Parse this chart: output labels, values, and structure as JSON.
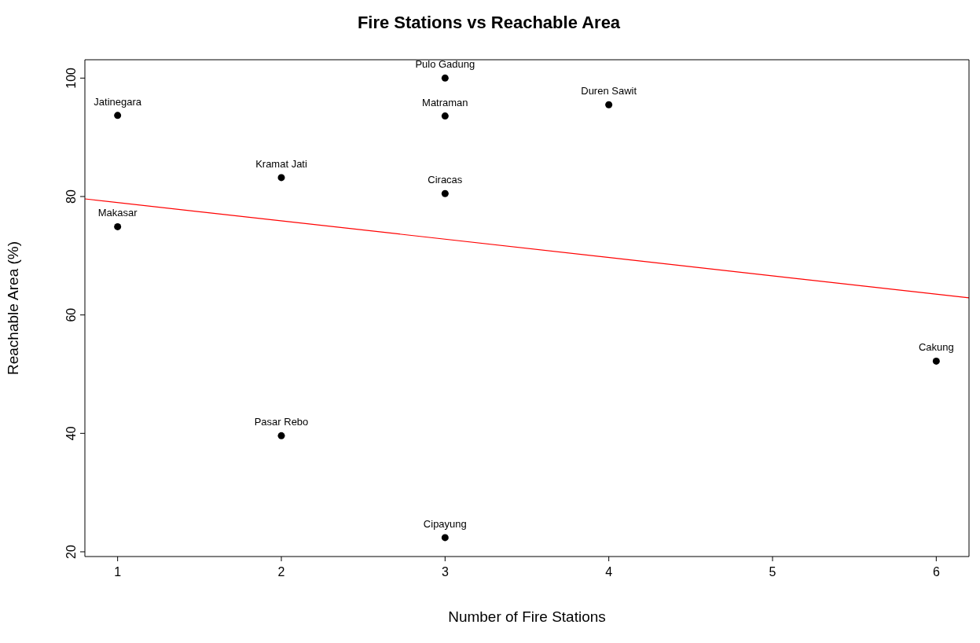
{
  "chart_data": {
    "type": "scatter",
    "title": "Fire Stations vs Reachable Area",
    "xlabel": "Number of Fire Stations",
    "ylabel": "Reachable Area (%)",
    "xlim": [
      0.8,
      6.2
    ],
    "ylim": [
      19.2,
      103.1
    ],
    "xticks": [
      1,
      2,
      3,
      4,
      5,
      6
    ],
    "yticks": [
      20,
      40,
      60,
      80,
      100
    ],
    "series": [
      {
        "color": "#000000",
        "marker": "circle",
        "x": [
          1,
          1,
          2,
          2,
          3,
          3,
          3,
          3,
          4,
          6
        ],
        "values": [
          93.7,
          74.9,
          83.2,
          39.6,
          100,
          93.6,
          80.5,
          22.4,
          95.5,
          52.2
        ]
      },
      {
        "type": "line",
        "color": "#ff0000",
        "line_style": "solid",
        "x": [
          0.8,
          6.2
        ],
        "values": [
          79.6,
          62.9
        ]
      }
    ],
    "annotations": [
      {
        "text": "Jatinegara",
        "x": 1,
        "y": 93.7
      },
      {
        "text": "Makasar",
        "x": 1,
        "y": 74.9
      },
      {
        "text": "Kramat Jati",
        "x": 2,
        "y": 83.2
      },
      {
        "text": "Pasar Rebo",
        "x": 2,
        "y": 39.6
      },
      {
        "text": "Pulo Gadung",
        "x": 3,
        "y": 100
      },
      {
        "text": "Matraman",
        "x": 3,
        "y": 93.6
      },
      {
        "text": "Ciracas",
        "x": 3,
        "y": 80.5
      },
      {
        "text": "Cipayung",
        "x": 3,
        "y": 22.4
      },
      {
        "text": "Duren Sawit",
        "x": 4,
        "y": 95.5
      },
      {
        "text": "Cakung",
        "x": 6,
        "y": 52.2
      }
    ]
  }
}
